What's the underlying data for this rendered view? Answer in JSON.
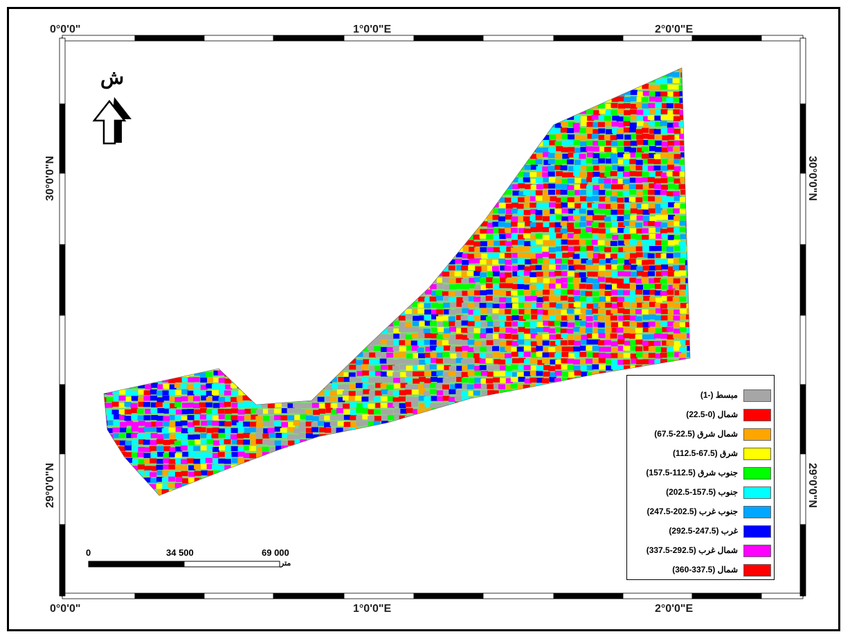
{
  "map": {
    "north_label": "ش",
    "graticule": {
      "top": [
        "0°0'0\"",
        "1°0'0\"E",
        "2°0'0\"E"
      ],
      "bottom": [
        "0°0'0\"",
        "1°0'0\"E",
        "2°0'0\"E"
      ],
      "left": [
        "30°0'0\"N",
        "29°0'0\"N"
      ],
      "right": [
        "30°0'0\"N",
        "29°0'0\"N"
      ]
    },
    "scale_bar": {
      "labels": [
        "0",
        "34 500",
        "69 000"
      ],
      "unit": "متر"
    },
    "legend": {
      "items": [
        {
          "label": "مبسط (-1)",
          "color": "#a6a6a6"
        },
        {
          "label": "شمال (0-22.5)",
          "color": "#ff0000"
        },
        {
          "label": "شمال شرق  (22.5-67.5)",
          "color": "#ffa500"
        },
        {
          "label": "شرق (67.5-112.5)",
          "color": "#ffff00"
        },
        {
          "label": "جنوب شرق (112.5-157.5)",
          "color": "#00ff00"
        },
        {
          "label": "جنوب (157.5-202.5)",
          "color": "#00ffff"
        },
        {
          "label": "جنوب غرب (202.5-247.5)",
          "color": "#00a6ff"
        },
        {
          "label": "غرب (247.5-292.5)",
          "color": "#0000ff"
        },
        {
          "label": "شمال غرب (292.5-337.5)",
          "color": "#ff00ff"
        },
        {
          "label": "شمال (337.5-360)",
          "color": "#ff0000"
        }
      ]
    }
  }
}
